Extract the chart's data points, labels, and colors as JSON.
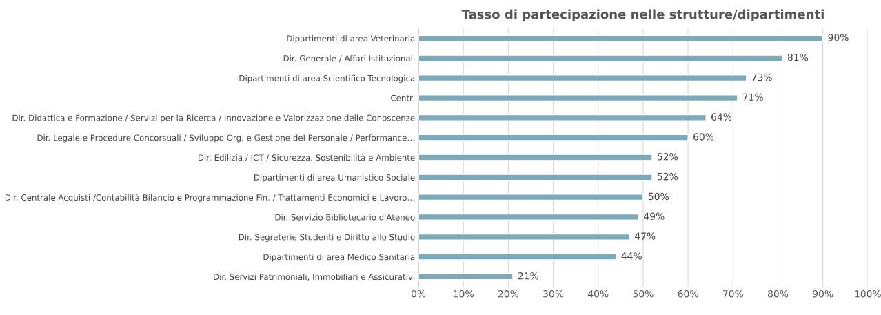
{
  "chart_data": {
    "type": "bar",
    "orientation": "horizontal",
    "title": "Tasso di partecipazione nelle strutture/dipartimenti",
    "categories": [
      "Dipartimenti di area Veterinaria",
      "Dir. Generale / Affari Istituzionali",
      "Dipartimenti di area Scientifico Tecnologica",
      "Centri",
      "Dir. Didattica e Formazione / Servizi per la Ricerca / Innovazione e Valorizzazione delle Conoscenze",
      "Dir. Legale e Procedure Concorsuali / Sviluppo Org. e Gestione del Personale / Performance…",
      "Dir. Edilizia / ICT / Sicurezza, Sostenibilità e Ambiente",
      "Dipartimenti di area Umanistico Sociale",
      "Dir. Centrale Acquisti /Contabilità Bilancio e Programmazione Fin. / Trattamenti Economici e Lavoro…",
      "Dir. Servizio Bibliotecario d'Ateneo",
      "Dir. Segreterie Studenti e Diritto allo Studio",
      "Dipartimenti di area Medico Sanitaria",
      "Dir. Servizi Patrimoniali, Immobiliari e Assicurativi"
    ],
    "values": [
      90,
      81,
      73,
      71,
      64,
      60,
      52,
      52,
      50,
      49,
      47,
      44,
      21
    ],
    "value_labels": [
      "90%",
      "81%",
      "73%",
      "71%",
      "64%",
      "60%",
      "52%",
      "52%",
      "50%",
      "49%",
      "47%",
      "44%",
      "21%"
    ],
    "color": "#7ea9b8",
    "xlim": [
      0,
      100
    ],
    "xticks": [
      {
        "value": 0,
        "label": "0%"
      },
      {
        "value": 10,
        "label": "10%"
      },
      {
        "value": 20,
        "label": "20%"
      },
      {
        "value": 30,
        "label": "30%"
      },
      {
        "value": 40,
        "label": "40%"
      },
      {
        "value": 50,
        "label": "50%"
      },
      {
        "value": 60,
        "label": "60%"
      },
      {
        "value": 70,
        "label": "70%"
      },
      {
        "value": 80,
        "label": "80%"
      },
      {
        "value": 90,
        "label": "90%"
      },
      {
        "value": 100,
        "label": "100%"
      }
    ],
    "grid": "x"
  }
}
